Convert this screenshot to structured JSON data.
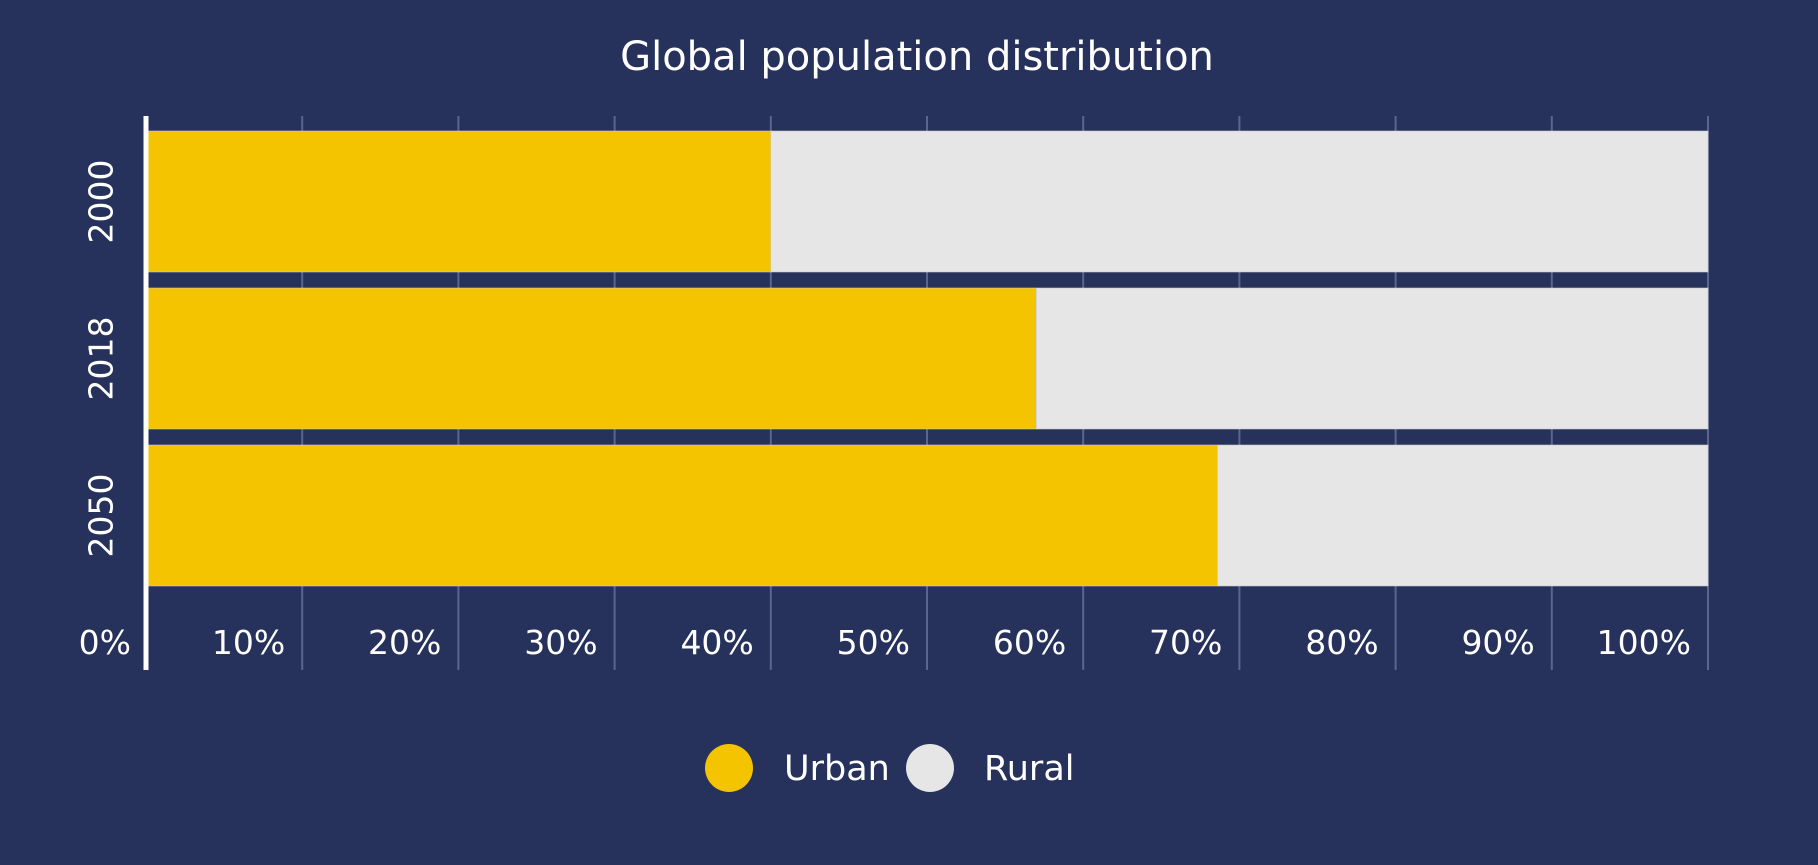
{
  "chart_data": {
    "type": "bar",
    "orientation": "horizontal",
    "stacked": true,
    "title": "Global population distribution",
    "categories": [
      "2000",
      "2018",
      "2050"
    ],
    "series": [
      {
        "name": "Urban",
        "values": [
          40,
          57,
          68.6
        ],
        "color": "#f5c400"
      },
      {
        "name": "Rural",
        "values": [
          60,
          43,
          31.4
        ],
        "color": "#e6e6e6"
      }
    ],
    "xlim": [
      0,
      100
    ],
    "ticks": [
      "0%",
      "10%",
      "20%",
      "30%",
      "40%",
      "50%",
      "60%",
      "70%",
      "80%",
      "90%",
      "100%"
    ],
    "grid": true,
    "legend_position": "bottom-center",
    "background": "#26315c",
    "axis_color": "#ffffff",
    "grid_color": "#5a6590"
  }
}
